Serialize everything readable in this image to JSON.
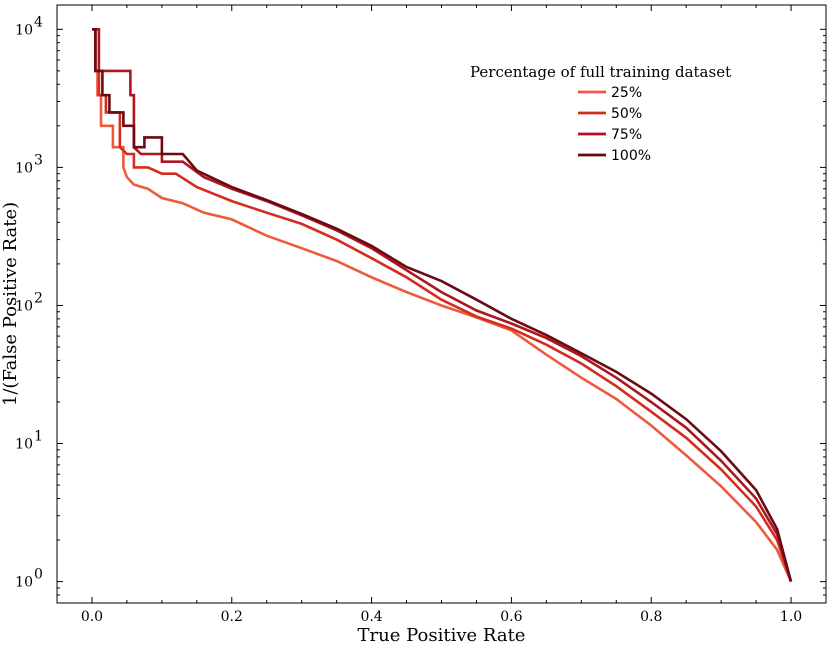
{
  "chart_data": {
    "type": "line",
    "title": "",
    "xlabel": "True Positive Rate",
    "ylabel": "1/(False Positive Rate)",
    "xscale": "linear",
    "yscale": "log",
    "xlim": [
      -0.05,
      1.05
    ],
    "ylim": [
      0.7,
      15000
    ],
    "x_ticks": [
      0.0,
      0.2,
      0.4,
      0.6,
      0.8,
      1.0
    ],
    "x_tick_labels": [
      "0.0",
      "0.2",
      "0.4",
      "0.6",
      "0.8",
      "1.0"
    ],
    "y_ticks": [
      1,
      10,
      100,
      1000,
      10000
    ],
    "y_tick_labels": [
      {
        "base": "10",
        "exp": "0"
      },
      {
        "base": "10",
        "exp": "1"
      },
      {
        "base": "10",
        "exp": "2"
      },
      {
        "base": "10",
        "exp": "3"
      },
      {
        "base": "10",
        "exp": "4"
      }
    ],
    "grid": false,
    "legend": {
      "title": "Percentage of full training dataset",
      "position": "upper right"
    },
    "series": [
      {
        "name": "25%",
        "color": "#ef5a3d",
        "points": [
          [
            0.0,
            10000
          ],
          [
            0.005,
            10000
          ],
          [
            0.005,
            5000
          ],
          [
            0.008,
            5000
          ],
          [
            0.008,
            3333
          ],
          [
            0.013,
            3333
          ],
          [
            0.013,
            2000
          ],
          [
            0.02,
            2000
          ],
          [
            0.03,
            2000
          ],
          [
            0.03,
            1400
          ],
          [
            0.045,
            1400
          ],
          [
            0.045,
            1000
          ],
          [
            0.05,
            850
          ],
          [
            0.06,
            750
          ],
          [
            0.08,
            700
          ],
          [
            0.1,
            600
          ],
          [
            0.13,
            550
          ],
          [
            0.16,
            470
          ],
          [
            0.2,
            420
          ],
          [
            0.25,
            320
          ],
          [
            0.3,
            260
          ],
          [
            0.35,
            210
          ],
          [
            0.4,
            160
          ],
          [
            0.45,
            125
          ],
          [
            0.5,
            100
          ],
          [
            0.55,
            82
          ],
          [
            0.6,
            66
          ],
          [
            0.65,
            44
          ],
          [
            0.7,
            30
          ],
          [
            0.75,
            21
          ],
          [
            0.8,
            13.5
          ],
          [
            0.85,
            8.2
          ],
          [
            0.9,
            4.9
          ],
          [
            0.95,
            2.7
          ],
          [
            0.98,
            1.7
          ],
          [
            1.0,
            1.0
          ]
        ]
      },
      {
        "name": "50%",
        "color": "#d42d20",
        "points": [
          [
            0.0,
            10000
          ],
          [
            0.005,
            10000
          ],
          [
            0.005,
            5000
          ],
          [
            0.01,
            5000
          ],
          [
            0.01,
            3333
          ],
          [
            0.02,
            3333
          ],
          [
            0.02,
            2500
          ],
          [
            0.04,
            2500
          ],
          [
            0.04,
            1400
          ],
          [
            0.05,
            1250
          ],
          [
            0.06,
            1250
          ],
          [
            0.06,
            1000
          ],
          [
            0.08,
            1000
          ],
          [
            0.1,
            900
          ],
          [
            0.12,
            900
          ],
          [
            0.15,
            720
          ],
          [
            0.2,
            570
          ],
          [
            0.25,
            470
          ],
          [
            0.3,
            390
          ],
          [
            0.35,
            300
          ],
          [
            0.4,
            220
          ],
          [
            0.45,
            160
          ],
          [
            0.5,
            110
          ],
          [
            0.55,
            83
          ],
          [
            0.6,
            68
          ],
          [
            0.65,
            52
          ],
          [
            0.7,
            38
          ],
          [
            0.75,
            26
          ],
          [
            0.8,
            17
          ],
          [
            0.85,
            11
          ],
          [
            0.9,
            6.5
          ],
          [
            0.95,
            3.5
          ],
          [
            0.98,
            2.0
          ],
          [
            1.0,
            1.0
          ]
        ]
      },
      {
        "name": "75%",
        "color": "#ad1620",
        "points": [
          [
            0.0,
            10000
          ],
          [
            0.01,
            10000
          ],
          [
            0.01,
            5000
          ],
          [
            0.055,
            5000
          ],
          [
            0.055,
            3333
          ],
          [
            0.06,
            3333
          ],
          [
            0.06,
            1400
          ],
          [
            0.07,
            1250
          ],
          [
            0.1,
            1250
          ],
          [
            0.1,
            1100
          ],
          [
            0.13,
            1100
          ],
          [
            0.16,
            850
          ],
          [
            0.2,
            700
          ],
          [
            0.25,
            570
          ],
          [
            0.3,
            450
          ],
          [
            0.35,
            350
          ],
          [
            0.4,
            260
          ],
          [
            0.45,
            180
          ],
          [
            0.5,
            125
          ],
          [
            0.55,
            92
          ],
          [
            0.6,
            74
          ],
          [
            0.65,
            58
          ],
          [
            0.7,
            43
          ],
          [
            0.75,
            30
          ],
          [
            0.8,
            20
          ],
          [
            0.85,
            13
          ],
          [
            0.9,
            7.5
          ],
          [
            0.95,
            4.0
          ],
          [
            0.98,
            2.2
          ],
          [
            1.0,
            1.0
          ]
        ]
      },
      {
        "name": "100%",
        "color": "#6b0a12",
        "points": [
          [
            0.0,
            10000
          ],
          [
            0.005,
            10000
          ],
          [
            0.005,
            5000
          ],
          [
            0.015,
            5000
          ],
          [
            0.015,
            3333
          ],
          [
            0.025,
            3333
          ],
          [
            0.025,
            2500
          ],
          [
            0.045,
            2500
          ],
          [
            0.045,
            2000
          ],
          [
            0.06,
            2000
          ],
          [
            0.06,
            1400
          ],
          [
            0.075,
            1400
          ],
          [
            0.075,
            1650
          ],
          [
            0.1,
            1650
          ],
          [
            0.1,
            1250
          ],
          [
            0.13,
            1250
          ],
          [
            0.15,
            950
          ],
          [
            0.2,
            720
          ],
          [
            0.25,
            580
          ],
          [
            0.3,
            460
          ],
          [
            0.35,
            360
          ],
          [
            0.4,
            270
          ],
          [
            0.45,
            190
          ],
          [
            0.5,
            150
          ],
          [
            0.55,
            110
          ],
          [
            0.6,
            80
          ],
          [
            0.65,
            61
          ],
          [
            0.7,
            45
          ],
          [
            0.75,
            33
          ],
          [
            0.8,
            23
          ],
          [
            0.85,
            15
          ],
          [
            0.9,
            8.8
          ],
          [
            0.95,
            4.6
          ],
          [
            0.98,
            2.4
          ],
          [
            1.0,
            1.0
          ]
        ]
      }
    ]
  }
}
